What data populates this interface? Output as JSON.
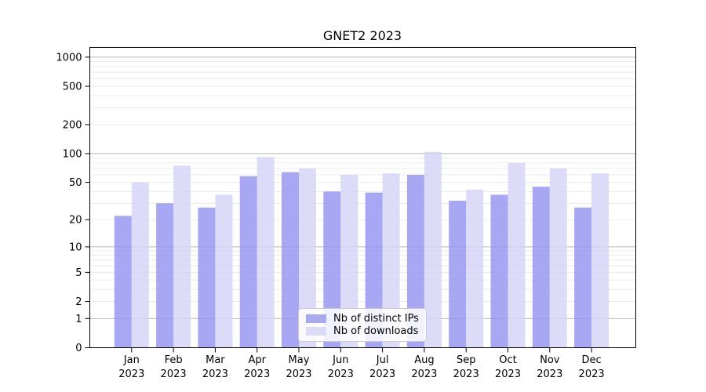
{
  "chart_data": {
    "type": "bar",
    "title": "GNET2 2023",
    "categories": [
      {
        "month": "Jan",
        "year": "2023"
      },
      {
        "month": "Feb",
        "year": "2023"
      },
      {
        "month": "Mar",
        "year": "2023"
      },
      {
        "month": "Apr",
        "year": "2023"
      },
      {
        "month": "May",
        "year": "2023"
      },
      {
        "month": "Jun",
        "year": "2023"
      },
      {
        "month": "Jul",
        "year": "2023"
      },
      {
        "month": "Aug",
        "year": "2023"
      },
      {
        "month": "Sep",
        "year": "2023"
      },
      {
        "month": "Oct",
        "year": "2023"
      },
      {
        "month": "Nov",
        "year": "2023"
      },
      {
        "month": "Dec",
        "year": "2023"
      }
    ],
    "series": [
      {
        "name": "Nb of distinct IPs",
        "bar_color": "rgba(145,145,240,0.8)",
        "legend_color": "#a9a9f0",
        "values": [
          22,
          30,
          27,
          58,
          64,
          40,
          39,
          60,
          32,
          37,
          45,
          27
        ]
      },
      {
        "name": "Nb of downloads",
        "bar_color": "rgba(211,211,248,0.8)",
        "legend_color": "#dcdcf8",
        "values": [
          50,
          75,
          37,
          92,
          70,
          60,
          62,
          104,
          42,
          80,
          70,
          62
        ]
      }
    ],
    "yscale": "log1p",
    "ylim": [
      0,
      1260
    ],
    "yticks": [
      0,
      1,
      2,
      5,
      10,
      20,
      50,
      100,
      200,
      500,
      1000
    ],
    "grid": {
      "major_lines": [
        1,
        10,
        100,
        1000
      ],
      "minor_lines": "2-9 per decade (2..9, 20..90, 200..900)",
      "major_color": "#b8b8b8",
      "minor_color": "#e9e9e9"
    },
    "legend_position": "lower center",
    "xlabel": "",
    "ylabel": ""
  }
}
